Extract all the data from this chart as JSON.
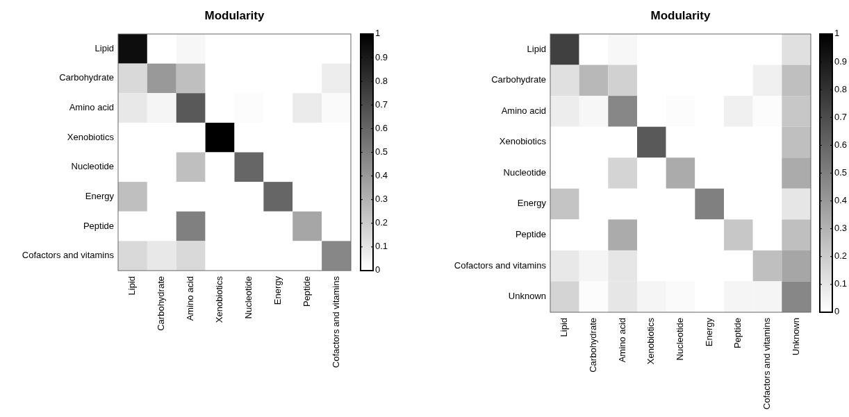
{
  "chart_data": [
    {
      "type": "heatmap",
      "title": "Modularity",
      "categories": [
        "Lipid",
        "Carbohydrate",
        "Amino acid",
        "Xenobiotics",
        "Nucleotide",
        "Energy",
        "Peptide",
        "Cofactors and vitamins"
      ],
      "y_categories": [
        "Lipid",
        "Carbohydrate",
        "Amino acid",
        "Xenobiotics",
        "Nucleotide",
        "Energy",
        "Peptide",
        "Cofactors and vitamins"
      ],
      "cells": [
        [
          0.95,
          0,
          0.03,
          0,
          0,
          0,
          0,
          0
        ],
        [
          0.15,
          0.4,
          0.25,
          0,
          0,
          0,
          0,
          0.07
        ],
        [
          0.09,
          0.04,
          0.65,
          0,
          0.01,
          0,
          0.08,
          0.02
        ],
        [
          0,
          0,
          0,
          1,
          0,
          0,
          0,
          0
        ],
        [
          0,
          0,
          0.25,
          0,
          0.6,
          0,
          0,
          0
        ],
        [
          0.25,
          0,
          0,
          0,
          0,
          0.6,
          0,
          0
        ],
        [
          0,
          0,
          0.5,
          0,
          0,
          0,
          0.35,
          0
        ],
        [
          0.15,
          0.09,
          0.15,
          0,
          0,
          0,
          0,
          0.47
        ]
      ],
      "clim": [
        0,
        1
      ],
      "cticks": [
        0,
        0.1,
        0.2,
        0.3,
        0.4,
        0.5,
        0.6,
        0.7,
        0.8,
        0.9,
        1
      ]
    },
    {
      "type": "heatmap",
      "title": "Modularity",
      "categories": [
        "Lipid",
        "Carbohydrate",
        "Amino acid",
        "Xenobiotics",
        "Nucleotide",
        "Energy",
        "Peptide",
        "Cofactors and vitamins",
        "Unknown"
      ],
      "y_categories": [
        "Lipid",
        "Carbohydrate",
        "Amino acid",
        "Xenobiotics",
        "Nucleotide",
        "Energy",
        "Peptide",
        "Cofactors and vitamins",
        "Unknown"
      ],
      "cells": [
        [
          0.75,
          0,
          0.03,
          0,
          0,
          0,
          0,
          0,
          0.12
        ],
        [
          0.12,
          0.28,
          0.18,
          0,
          0,
          0,
          0,
          0.06,
          0.25
        ],
        [
          0.07,
          0.03,
          0.47,
          0,
          0.01,
          0,
          0.06,
          0.01,
          0.22
        ],
        [
          0,
          0,
          0,
          0.65,
          0,
          0,
          0,
          0,
          0.25
        ],
        [
          0,
          0,
          0.17,
          0,
          0.33,
          0,
          0,
          0,
          0.33
        ],
        [
          0.23,
          0,
          0,
          0,
          0,
          0.5,
          0,
          0,
          0.1
        ],
        [
          0,
          0,
          0.33,
          0,
          0,
          0,
          0.22,
          0,
          0.25
        ],
        [
          0.09,
          0.04,
          0.1,
          0,
          0,
          0,
          0,
          0.25,
          0.35
        ],
        [
          0.17,
          0.01,
          0.1,
          0.04,
          0.02,
          0,
          0.04,
          0.04,
          0.47
        ]
      ],
      "clim": [
        0,
        1
      ],
      "cticks": [
        0,
        0.1,
        0.2,
        0.3,
        0.4,
        0.5,
        0.6,
        0.7,
        0.8,
        0.9,
        1
      ]
    }
  ]
}
